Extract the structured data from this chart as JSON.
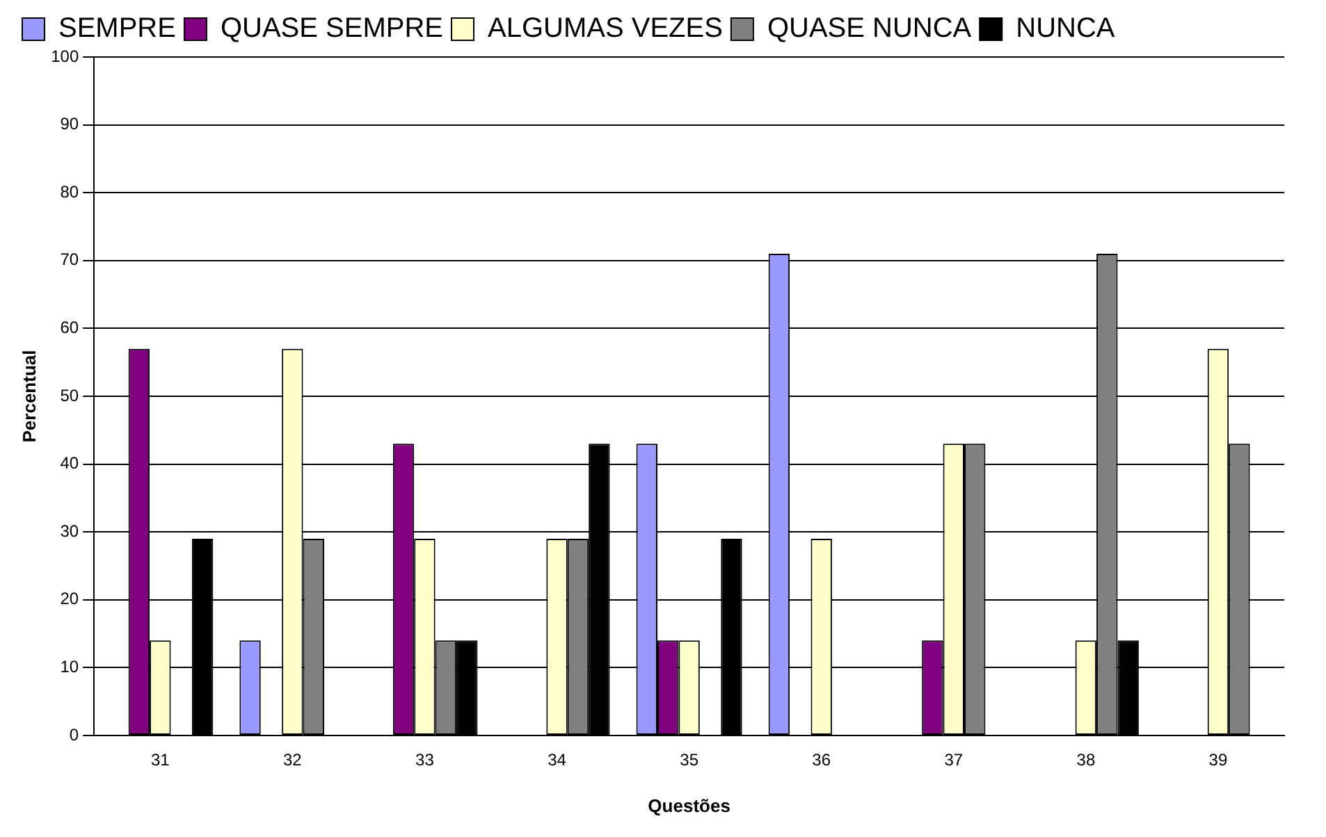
{
  "chart_data": {
    "type": "bar",
    "xlabel": "Questões",
    "ylabel": "Percentual",
    "categories": [
      "31",
      "32",
      "33",
      "34",
      "35",
      "36",
      "37",
      "38",
      "39"
    ],
    "series": [
      {
        "name": "SEMPRE",
        "color": "#9999ff",
        "values": [
          0,
          14,
          0,
          0,
          43,
          71,
          0,
          0,
          0
        ]
      },
      {
        "name": "QUASE SEMPRE",
        "color": "#800080",
        "values": [
          57,
          0,
          43,
          0,
          14,
          0,
          14,
          0,
          0
        ]
      },
      {
        "name": "ALGUMAS VEZES",
        "color": "#ffffcc",
        "values": [
          14,
          57,
          29,
          29,
          14,
          29,
          43,
          14,
          57
        ]
      },
      {
        "name": "QUASE NUNCA",
        "color": "#808080",
        "values": [
          0,
          29,
          14,
          29,
          0,
          0,
          43,
          71,
          43
        ]
      },
      {
        "name": "NUNCA",
        "color": "#000000",
        "values": [
          29,
          0,
          14,
          43,
          29,
          0,
          0,
          14,
          0
        ]
      }
    ],
    "ylim": [
      0,
      100
    ],
    "yticks": [
      0,
      10,
      20,
      30,
      40,
      50,
      60,
      70,
      80,
      90,
      100
    ],
    "grid": "y",
    "legend": "top"
  }
}
